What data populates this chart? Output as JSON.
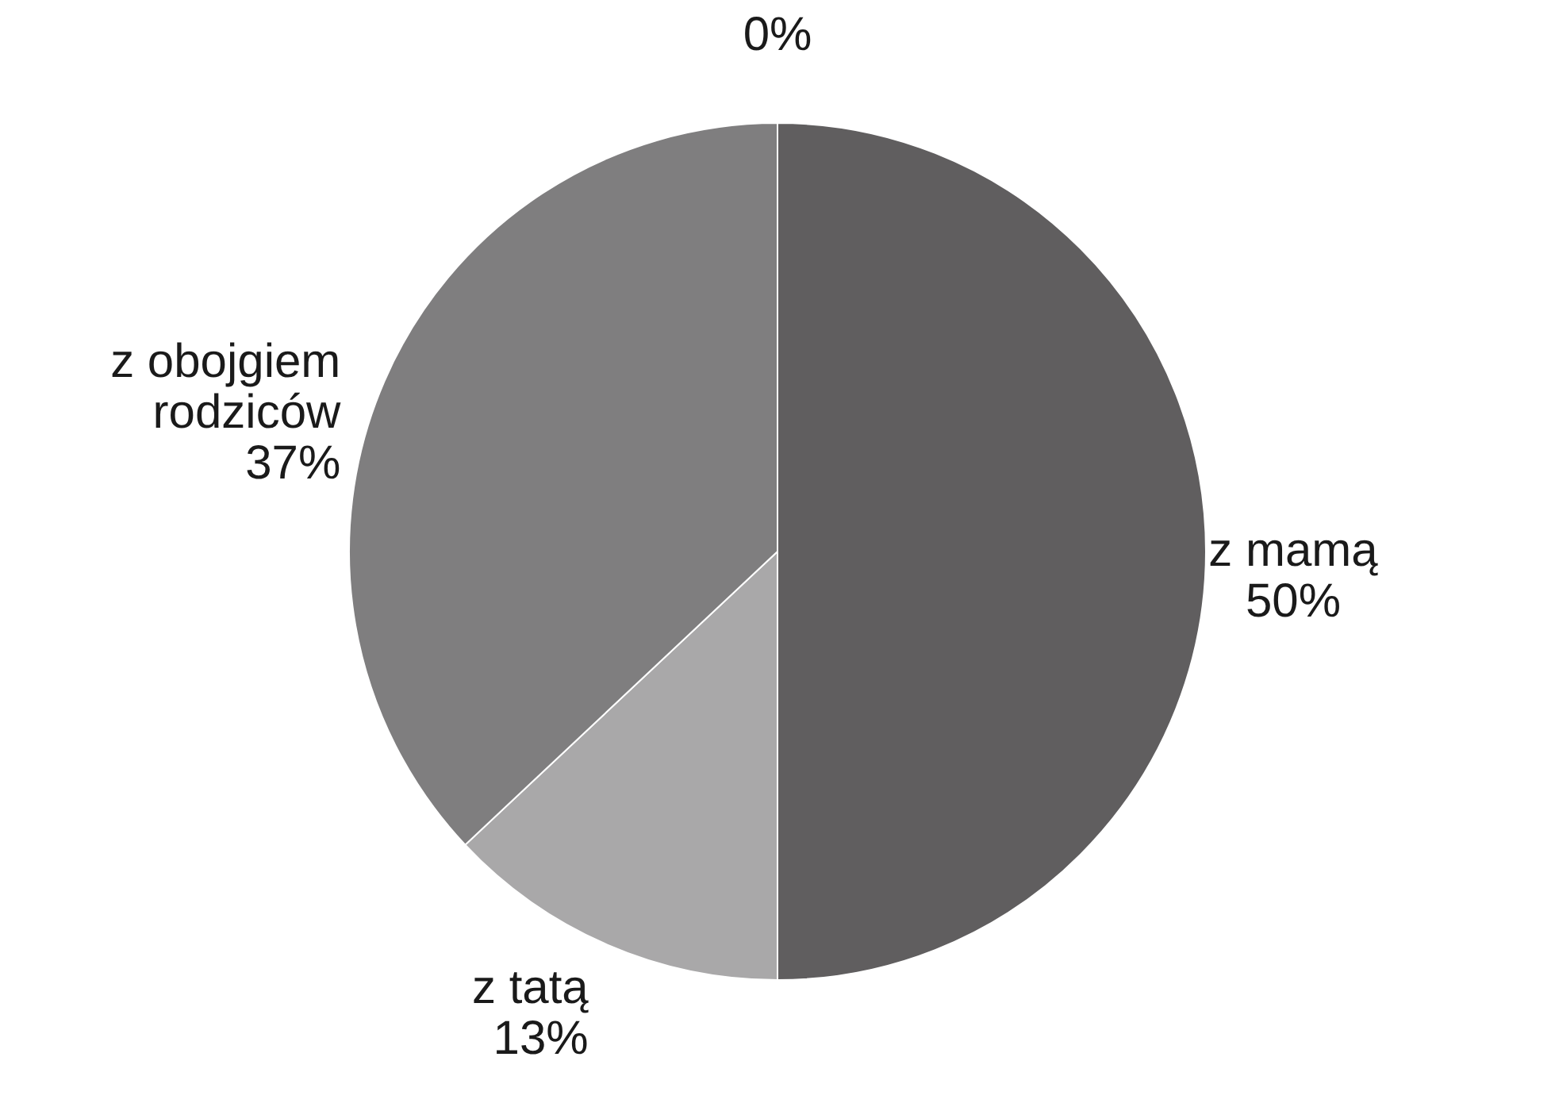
{
  "chart_data": {
    "type": "pie",
    "categories": [
      "z mamą",
      "z tatą",
      "z obojgiem rodziców",
      null
    ],
    "values": [
      50,
      13,
      37,
      0
    ],
    "colors": [
      "#605e5f",
      "#a9a8a9",
      "#7f7e7f",
      "#d0d0d0"
    ],
    "value_labels": [
      "50%",
      "13%",
      "37%",
      "0%"
    ]
  }
}
